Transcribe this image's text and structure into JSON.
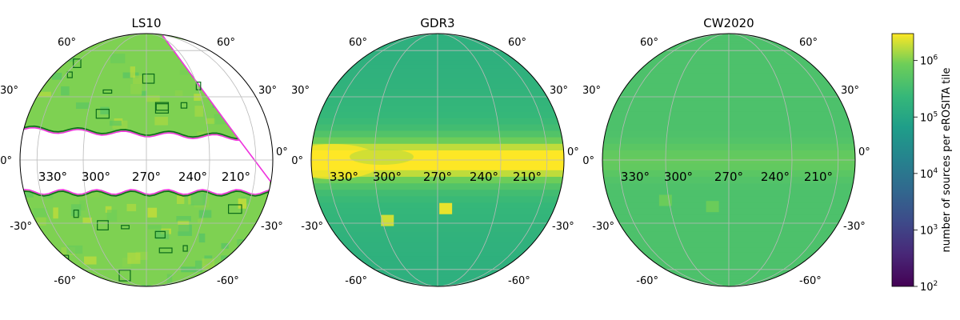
{
  "chart_data": [
    {
      "type": "heatmap",
      "projection": "orthographic",
      "title": "LS10",
      "galactic_plane_masked": true,
      "contours": [
        "dark-green",
        "magenta"
      ],
      "dominant_log10_density": 6.0,
      "hotspots": []
    },
    {
      "type": "heatmap",
      "projection": "orthographic",
      "title": "GDR3",
      "galactic_plane_masked": false,
      "dominant_log10_density": 5.2,
      "hotspots": [
        {
          "lon": 266,
          "lat": -23,
          "log10_density": 6.4
        },
        {
          "lon": 297,
          "lat": -29,
          "log10_density": 6.3
        }
      ]
    },
    {
      "type": "heatmap",
      "projection": "orthographic",
      "title": "CW2020",
      "galactic_plane_masked": false,
      "dominant_log10_density": 5.6,
      "hotspots": [
        {
          "lon": 278,
          "lat": -22,
          "log10_density": 5.9
        },
        {
          "lon": 302,
          "lat": -19,
          "log10_density": 5.9
        }
      ]
    }
  ],
  "grid": {
    "lat_labels": [
      "60°",
      "30°",
      "0°",
      "-30°",
      "-60°"
    ],
    "lon_labels": [
      "330°",
      "300°",
      "270°",
      "240°",
      "210°"
    ]
  },
  "colorbar": {
    "label": "number of sources per eROSITA tile",
    "scale": "log",
    "range": [
      100,
      3000000
    ],
    "colormap": "viridis",
    "ticks": [
      {
        "value": 100,
        "base": "10",
        "exp": "2"
      },
      {
        "value": 1000,
        "base": "10",
        "exp": "3"
      },
      {
        "value": 10000,
        "base": "10",
        "exp": "4"
      },
      {
        "value": 100000,
        "base": "10",
        "exp": "5"
      },
      {
        "value": 1000000,
        "base": "10",
        "exp": "6"
      }
    ]
  },
  "colors": {
    "contour_green": "#0b6b1a",
    "contour_magenta": "#ee33dd",
    "grid": "#b9b9b9"
  }
}
